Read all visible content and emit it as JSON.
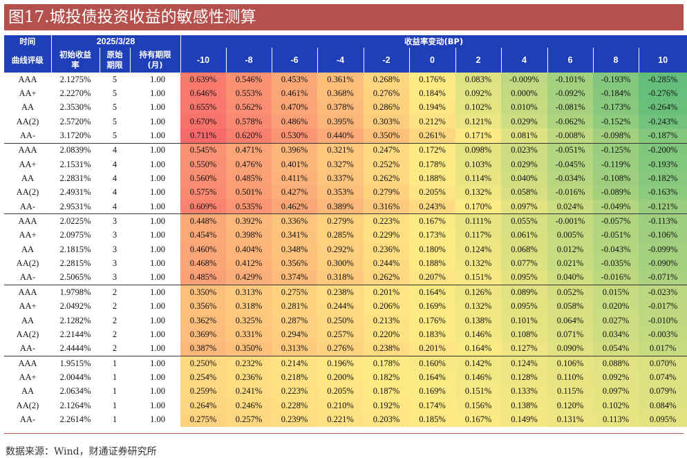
{
  "title": "图17.城投债投资收益的敏感性测算",
  "table": {
    "header": {
      "time_label": "时间",
      "date": "2025/3/28",
      "yield_change_label": "收益率变动(BP)",
      "curve_label": "曲线评级",
      "init_yield_label_1": "初始收益",
      "init_yield_label_2": "率",
      "orig_term_label_1": "原始",
      "orig_term_label_2": "期限",
      "hold_label_1": "持有期限",
      "hold_label_2": "(月)",
      "bp_columns": [
        "-10",
        "-8",
        "-6",
        "-4",
        "-2",
        "0",
        "2",
        "4",
        "6",
        "8",
        "10"
      ]
    },
    "groups": [
      {
        "term": "5",
        "rows": [
          {
            "rating": "AAA",
            "yield": "2.1275%",
            "hold": "1.00",
            "vals": [
              "0.639%",
              "0.546%",
              "0.453%",
              "0.361%",
              "0.268%",
              "0.176%",
              "0.083%",
              "-0.009%",
              "-0.101%",
              "-0.193%",
              "-0.285%"
            ]
          },
          {
            "rating": "AA+",
            "yield": "2.2270%",
            "hold": "1.00",
            "vals": [
              "0.646%",
              "0.553%",
              "0.461%",
              "0.368%",
              "0.276%",
              "0.184%",
              "0.092%",
              "0.000%",
              "-0.092%",
              "-0.184%",
              "-0.276%"
            ]
          },
          {
            "rating": "AA",
            "yield": "2.3530%",
            "hold": "1.00",
            "vals": [
              "0.655%",
              "0.562%",
              "0.470%",
              "0.378%",
              "0.286%",
              "0.194%",
              "0.102%",
              "0.010%",
              "-0.081%",
              "-0.173%",
              "-0.264%"
            ]
          },
          {
            "rating": "AA(2)",
            "yield": "2.5720%",
            "hold": "1.00",
            "vals": [
              "0.670%",
              "0.578%",
              "0.486%",
              "0.395%",
              "0.303%",
              "0.212%",
              "0.121%",
              "0.029%",
              "-0.062%",
              "-0.152%",
              "-0.243%"
            ]
          },
          {
            "rating": "AA-",
            "yield": "3.1720%",
            "hold": "1.00",
            "vals": [
              "0.711%",
              "0.620%",
              "0.530%",
              "0.440%",
              "0.350%",
              "0.261%",
              "0.171%",
              "0.081%",
              "-0.008%",
              "-0.098%",
              "-0.187%"
            ]
          }
        ]
      },
      {
        "term": "4",
        "rows": [
          {
            "rating": "AAA",
            "yield": "2.0839%",
            "hold": "1.00",
            "vals": [
              "0.545%",
              "0.471%",
              "0.396%",
              "0.321%",
              "0.247%",
              "0.172%",
              "0.098%",
              "0.023%",
              "-0.051%",
              "-0.125%",
              "-0.200%"
            ]
          },
          {
            "rating": "AA+",
            "yield": "2.1531%",
            "hold": "1.00",
            "vals": [
              "0.550%",
              "0.476%",
              "0.401%",
              "0.327%",
              "0.252%",
              "0.178%",
              "0.103%",
              "0.029%",
              "-0.045%",
              "-0.119%",
              "-0.193%"
            ]
          },
          {
            "rating": "AA",
            "yield": "2.2831%",
            "hold": "1.00",
            "vals": [
              "0.560%",
              "0.485%",
              "0.411%",
              "0.337%",
              "0.262%",
              "0.188%",
              "0.114%",
              "0.040%",
              "-0.034%",
              "-0.108%",
              "-0.182%"
            ]
          },
          {
            "rating": "AA(2)",
            "yield": "2.4931%",
            "hold": "1.00",
            "vals": [
              "0.575%",
              "0.501%",
              "0.427%",
              "0.353%",
              "0.279%",
              "0.205%",
              "0.132%",
              "0.058%",
              "-0.016%",
              "-0.089%",
              "-0.163%"
            ]
          },
          {
            "rating": "AA-",
            "yield": "2.9531%",
            "hold": "1.00",
            "vals": [
              "0.609%",
              "0.535%",
              "0.462%",
              "0.389%",
              "0.316%",
              "0.243%",
              "0.170%",
              "0.097%",
              "0.024%",
              "-0.049%",
              "-0.121%"
            ]
          }
        ]
      },
      {
        "term": "3",
        "rows": [
          {
            "rating": "AAA",
            "yield": "2.0225%",
            "hold": "1.00",
            "vals": [
              "0.448%",
              "0.392%",
              "0.336%",
              "0.279%",
              "0.223%",
              "0.167%",
              "0.111%",
              "0.055%",
              "-0.001%",
              "-0.057%",
              "-0.113%"
            ]
          },
          {
            "rating": "AA+",
            "yield": "2.0975%",
            "hold": "1.00",
            "vals": [
              "0.454%",
              "0.398%",
              "0.341%",
              "0.285%",
              "0.229%",
              "0.173%",
              "0.117%",
              "0.061%",
              "0.005%",
              "-0.051%",
              "-0.106%"
            ]
          },
          {
            "rating": "AA",
            "yield": "2.1815%",
            "hold": "1.00",
            "vals": [
              "0.460%",
              "0.404%",
              "0.348%",
              "0.292%",
              "0.236%",
              "0.180%",
              "0.124%",
              "0.068%",
              "0.012%",
              "-0.043%",
              "-0.099%"
            ]
          },
          {
            "rating": "AA(2)",
            "yield": "2.2815%",
            "hold": "1.00",
            "vals": [
              "0.468%",
              "0.412%",
              "0.356%",
              "0.300%",
              "0.244%",
              "0.188%",
              "0.132%",
              "0.077%",
              "0.021%",
              "-0.035%",
              "-0.090%"
            ]
          },
          {
            "rating": "AA-",
            "yield": "2.5065%",
            "hold": "1.00",
            "vals": [
              "0.485%",
              "0.429%",
              "0.374%",
              "0.318%",
              "0.262%",
              "0.207%",
              "0.151%",
              "0.095%",
              "0.040%",
              "-0.016%",
              "-0.071%"
            ]
          }
        ]
      },
      {
        "term": "2",
        "rows": [
          {
            "rating": "AAA",
            "yield": "1.9798%",
            "hold": "1.00",
            "vals": [
              "0.350%",
              "0.313%",
              "0.275%",
              "0.238%",
              "0.201%",
              "0.164%",
              "0.126%",
              "0.089%",
              "0.052%",
              "0.015%",
              "-0.023%"
            ]
          },
          {
            "rating": "AA+",
            "yield": "2.0492%",
            "hold": "1.00",
            "vals": [
              "0.356%",
              "0.318%",
              "0.281%",
              "0.244%",
              "0.206%",
              "0.169%",
              "0.132%",
              "0.095%",
              "0.058%",
              "0.020%",
              "-0.017%"
            ]
          },
          {
            "rating": "AA",
            "yield": "2.1282%",
            "hold": "1.00",
            "vals": [
              "0.362%",
              "0.325%",
              "0.287%",
              "0.250%",
              "0.213%",
              "0.176%",
              "0.138%",
              "0.101%",
              "0.064%",
              "0.027%",
              "-0.010%"
            ]
          },
          {
            "rating": "AA(2)",
            "yield": "2.2144%",
            "hold": "1.00",
            "vals": [
              "0.369%",
              "0.331%",
              "0.294%",
              "0.257%",
              "0.220%",
              "0.183%",
              "0.146%",
              "0.108%",
              "0.071%",
              "0.034%",
              "-0.003%"
            ]
          },
          {
            "rating": "AA-",
            "yield": "2.4444%",
            "hold": "1.00",
            "vals": [
              "0.387%",
              "0.350%",
              "0.313%",
              "0.276%",
              "0.238%",
              "0.201%",
              "0.164%",
              "0.127%",
              "0.090%",
              "0.054%",
              "0.017%"
            ]
          }
        ]
      },
      {
        "term": "1",
        "rows": [
          {
            "rating": "AAA",
            "yield": "1.9515%",
            "hold": "1.00",
            "vals": [
              "0.250%",
              "0.232%",
              "0.214%",
              "0.196%",
              "0.178%",
              "0.160%",
              "0.142%",
              "0.124%",
              "0.106%",
              "0.088%",
              "0.070%"
            ]
          },
          {
            "rating": "AA+",
            "yield": "2.0044%",
            "hold": "1.00",
            "vals": [
              "0.254%",
              "0.236%",
              "0.218%",
              "0.200%",
              "0.182%",
              "0.164%",
              "0.146%",
              "0.128%",
              "0.110%",
              "0.092%",
              "0.074%"
            ]
          },
          {
            "rating": "AA",
            "yield": "2.0634%",
            "hold": "1.00",
            "vals": [
              "0.259%",
              "0.241%",
              "0.223%",
              "0.205%",
              "0.187%",
              "0.169%",
              "0.151%",
              "0.133%",
              "0.115%",
              "0.097%",
              "0.079%"
            ]
          },
          {
            "rating": "AA(2)",
            "yield": "2.1264%",
            "hold": "1.00",
            "vals": [
              "0.264%",
              "0.246%",
              "0.228%",
              "0.210%",
              "0.192%",
              "0.174%",
              "0.156%",
              "0.138%",
              "0.120%",
              "0.102%",
              "0.084%"
            ]
          },
          {
            "rating": "AA-",
            "yield": "2.2614%",
            "hold": "1.00",
            "vals": [
              "0.275%",
              "0.257%",
              "0.239%",
              "0.221%",
              "0.203%",
              "0.185%",
              "0.167%",
              "0.149%",
              "0.131%",
              "0.113%",
              "0.095%"
            ]
          }
        ]
      }
    ]
  },
  "colors": {
    "title_bg": "#b5514d",
    "header_bg": "#1f3fb8",
    "heat_high": "#f8696b",
    "heat_mid": "#ffeb84",
    "heat_low": "#63be7b"
  },
  "source": "数据来源：Wind，财通证券研究所"
}
